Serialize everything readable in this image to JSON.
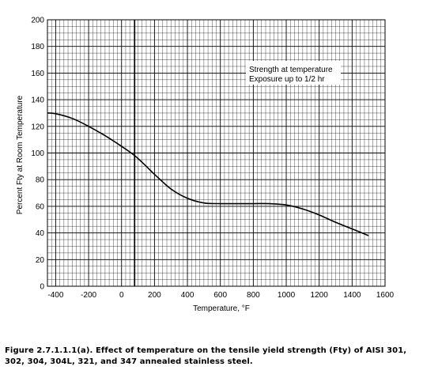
{
  "chart_data": {
    "type": "line",
    "title": "",
    "xlabel": "Temperature, °F",
    "ylabel": "Percent Fty at Room Temperature",
    "xlim": [
      -450,
      1600
    ],
    "ylim": [
      0,
      200
    ],
    "x_ticks": [
      -400,
      -200,
      0,
      200,
      400,
      600,
      800,
      1000,
      1200,
      1400,
      1600
    ],
    "y_ticks": [
      0,
      20,
      40,
      60,
      80,
      100,
      120,
      140,
      160,
      180,
      200
    ],
    "grid": true,
    "minor_grid_step_x": 25,
    "minor_grid_step_y": 5,
    "reference_line_x": 80,
    "annotations": [
      "Strength at temperature",
      "Exposure up to 1/2 hr"
    ],
    "series": [
      {
        "x": [
          -450,
          -400,
          -300,
          -200,
          -100,
          0,
          80,
          150,
          200,
          300,
          400,
          500,
          600,
          700,
          800,
          900,
          1000,
          1100,
          1200,
          1300,
          1400,
          1500
        ],
        "y": [
          130,
          129.5,
          126,
          120,
          113,
          105,
          98,
          90,
          84,
          73,
          66,
          62.5,
          62,
          62,
          62,
          62,
          61,
          58,
          53.5,
          48,
          43,
          38
        ]
      }
    ]
  },
  "caption": {
    "line1": "Figure 2.7.1.1.1(a).  Effect of temperature on the tensile yield strength (Fty) of AISI 301,",
    "line2": "302, 304, 304L, 321, and 347 annealed stainless steel."
  },
  "colors": {
    "grid": "#000000",
    "curve": "#000000",
    "background": "#ffffff"
  }
}
